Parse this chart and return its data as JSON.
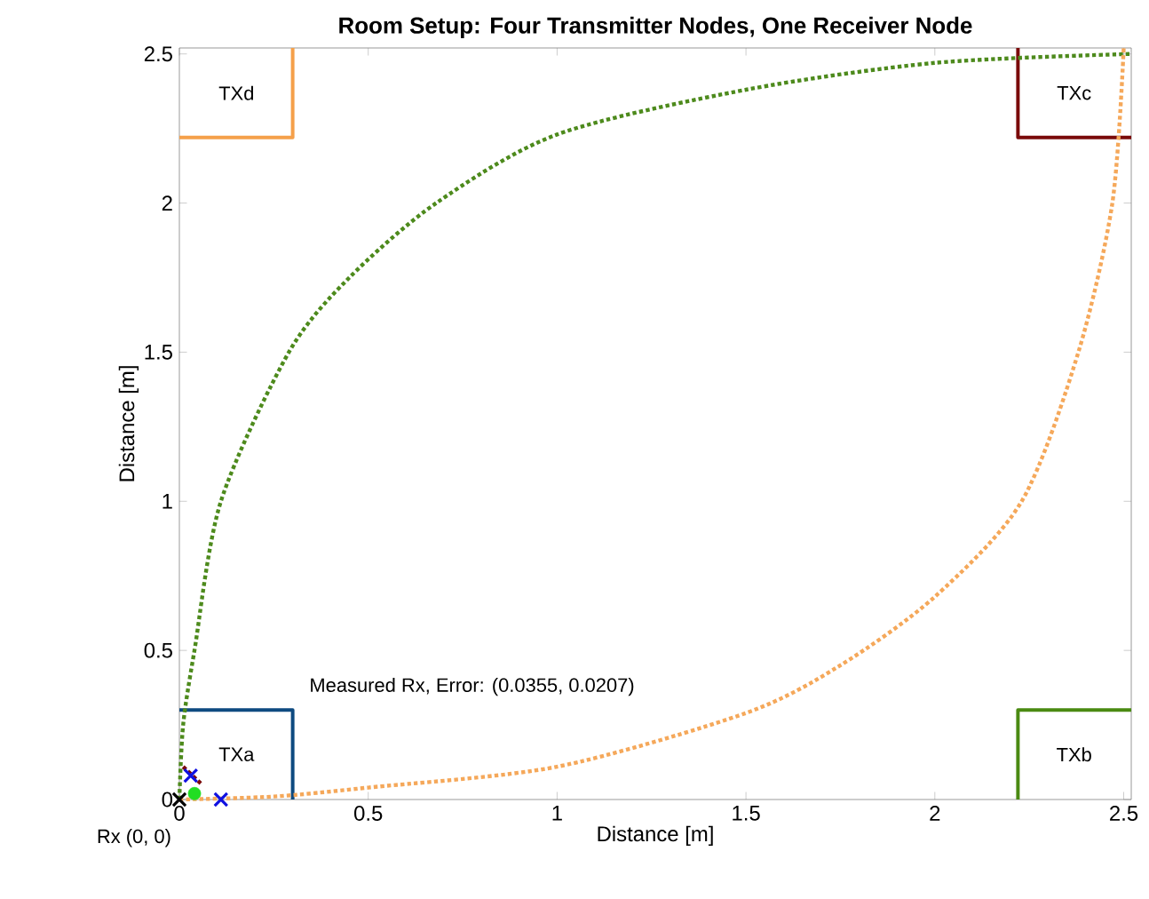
{
  "chart_data": {
    "type": "line",
    "title": "Room Setup: Four Transmitter Nodes, One Receiver Node",
    "xlabel": "Distance [m]",
    "ylabel": "Distance [m]",
    "xlim": [
      0,
      2.52
    ],
    "ylim": [
      0,
      2.52
    ],
    "xticks": [
      0,
      0.5,
      1,
      1.5,
      2,
      2.5
    ],
    "yticks": [
      0,
      0.5,
      1,
      1.5,
      2,
      2.5
    ],
    "series": [
      {
        "color": "#0e4a80",
        "x": [
          0,
          0.3,
          0.3
        ],
        "values": [
          0.3,
          0.3,
          0
        ]
      },
      {
        "color": "#4a8a12",
        "x": [
          2.22,
          2.22,
          2.52
        ],
        "values": [
          0,
          0.3,
          0.3
        ]
      },
      {
        "color": "#7a0a0a",
        "x": [
          2.22,
          2.22,
          2.52
        ],
        "values": [
          2.52,
          2.22,
          2.22
        ]
      },
      {
        "color": "#f5a04a",
        "x": [
          0,
          0.3,
          0.3
        ],
        "values": [
          2.22,
          2.22,
          2.52
        ]
      },
      {
        "color": "#4d8a1c",
        "line_style": "dotted",
        "x": [
          0,
          0.01,
          0.04,
          0.11,
          0.29,
          0.45,
          0.68,
          1.0,
          1.5,
          2.0,
          2.52
        ],
        "values": [
          0,
          0.25,
          0.5,
          1.0,
          1.5,
          1.75,
          2.0,
          2.23,
          2.38,
          2.47,
          2.5
        ]
      },
      {
        "color": "#f5a85a",
        "line_style": "dotted",
        "x": [
          0,
          0.25,
          0.5,
          1.0,
          1.5,
          1.75,
          2.0,
          2.23,
          2.38,
          2.47,
          2.5
        ],
        "values": [
          0,
          0.01,
          0.04,
          0.11,
          0.29,
          0.45,
          0.68,
          1.0,
          1.5,
          2.0,
          2.52
        ]
      },
      {
        "color": "#7a0a0a",
        "line_style": "dotted",
        "x": [
          0.01,
          0.06
        ],
        "values": [
          0.11,
          0.05
        ]
      },
      {
        "type": "scatter",
        "color": "#1010e0",
        "marker": "cross",
        "x": [
          0.03,
          0.11
        ],
        "values": [
          0.08,
          0.0
        ]
      },
      {
        "type": "scatter",
        "color": "#000000",
        "marker": "cross",
        "x": [
          0
        ],
        "values": [
          0
        ]
      },
      {
        "type": "scatter",
        "color": "#22dd22",
        "marker": "circle",
        "x": [
          0.04
        ],
        "values": [
          0.02
        ]
      }
    ],
    "annotations": [
      "TXa",
      "TXb",
      "TXc",
      "TXd",
      {
        "text": "Rx (0, 0)",
        "x": 0,
        "y": 0
      },
      "Measured Rx, Error: (0.0355, 0.0207)"
    ]
  }
}
